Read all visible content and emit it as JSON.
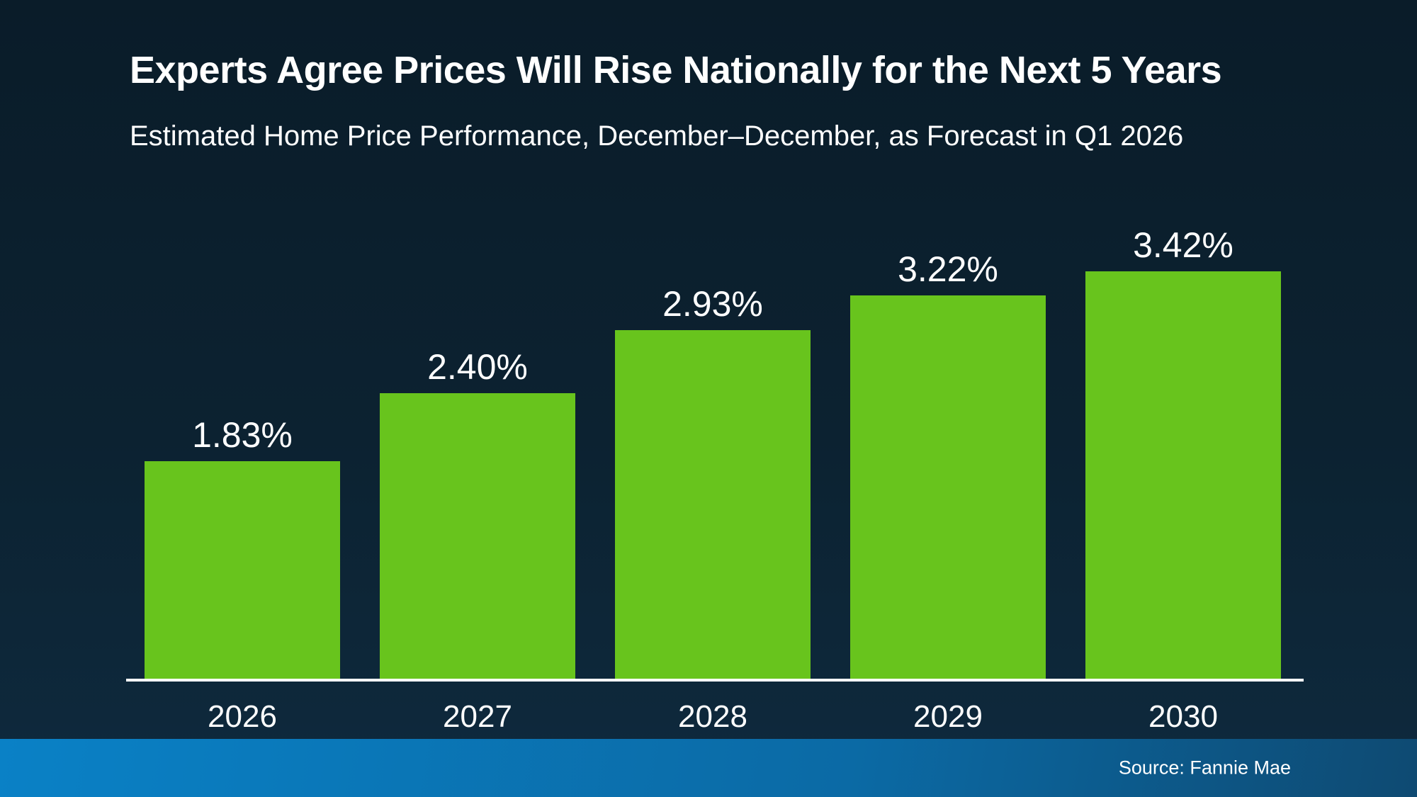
{
  "header": {
    "title": "Experts Agree Prices Will Rise Nationally for the Next 5 Years",
    "subtitle": "Estimated Home Price Performance, December–December, as Forecast in Q1 2026"
  },
  "footer": {
    "source": "Source: Fannie Mae"
  },
  "colors": {
    "background_top": "#0a1c29",
    "background_bottom": "#0e2a3e",
    "bar": "#68c41d",
    "text": "#ffffff",
    "axis_line": "#ffffff",
    "footer_gradient_left": "#0a81c6",
    "footer_gradient_mid": "#0b6aa5",
    "footer_gradient_right": "#0e4a72"
  },
  "chart_data": {
    "type": "bar",
    "title": "Experts Agree Prices Will Rise Nationally for the Next 5 Years",
    "subtitle": "Estimated Home Price Performance, December–December, as Forecast in Q1 2026",
    "categories": [
      "2026",
      "2027",
      "2028",
      "2029",
      "2030"
    ],
    "values": [
      1.83,
      2.4,
      2.93,
      3.22,
      3.42
    ],
    "value_labels": [
      "1.83%",
      "2.40%",
      "2.93%",
      "3.22%",
      "3.42%"
    ],
    "xlabel": "",
    "ylabel": "",
    "ylim": [
      0,
      3.42
    ],
    "grid": false,
    "legend": false,
    "y_axis_shown": false,
    "bar_color": "#68c41d",
    "source": "Source: Fannie Mae"
  }
}
